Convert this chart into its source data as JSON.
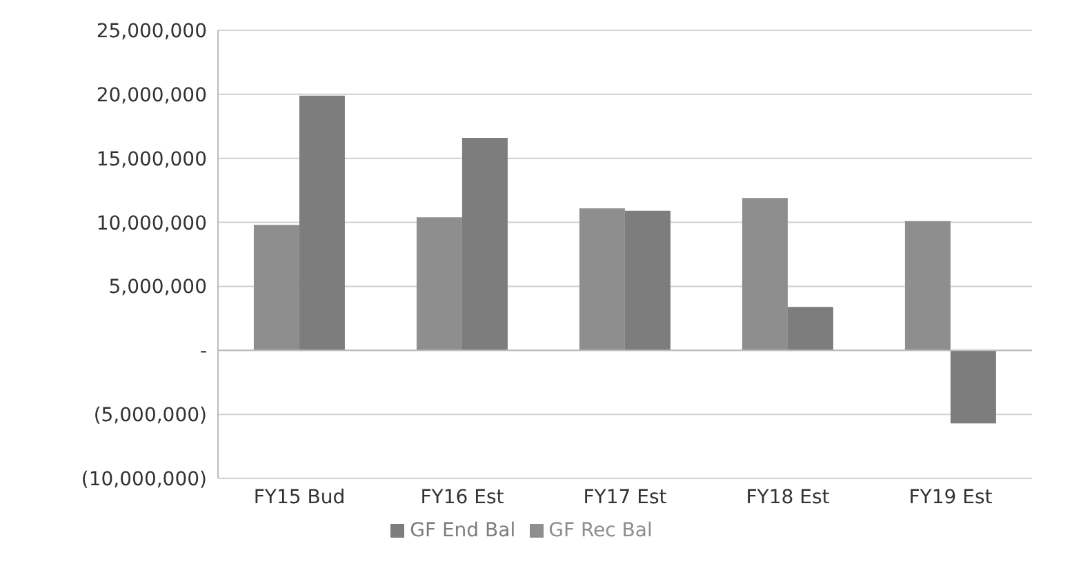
{
  "chart_data": {
    "type": "bar",
    "categories": [
      "FY15 Bud",
      "FY16 Est",
      "FY17 Est",
      "FY18 Est",
      "FY19 Est"
    ],
    "series": [
      {
        "name": "GF Rec Bal",
        "color": "#8e8e8e",
        "values": [
          9800000,
          10400000,
          11100000,
          11900000,
          10100000
        ]
      },
      {
        "name": "GF End Bal",
        "color": "#7d7d7d",
        "values": [
          19900000,
          16600000,
          10900000,
          3400000,
          -5700000
        ]
      }
    ],
    "ylim": [
      -10000000,
      25000000
    ],
    "yticks": [
      {
        "value": -10000000,
        "label": "(10,000,000)"
      },
      {
        "value": -5000000,
        "label": "(5,000,000)"
      },
      {
        "value": 0,
        "label": "-"
      },
      {
        "value": 5000000,
        "label": "5,000,000"
      },
      {
        "value": 10000000,
        "label": "10,000,000"
      },
      {
        "value": 15000000,
        "label": "15,000,000"
      },
      {
        "value": 20000000,
        "label": "20,000,000"
      },
      {
        "value": 25000000,
        "label": "25,000,000"
      }
    ],
    "grid": "y",
    "legend": "bottom"
  }
}
